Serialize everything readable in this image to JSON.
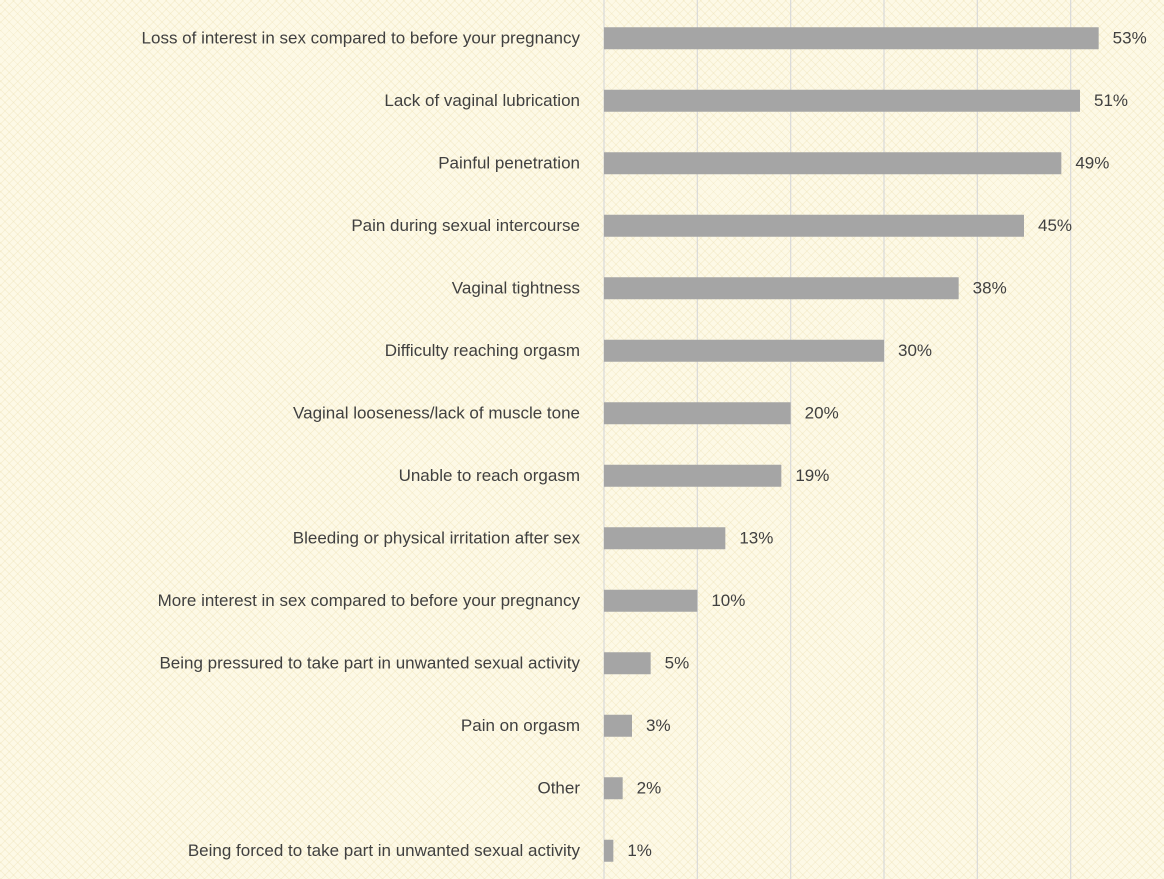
{
  "chart_data": {
    "type": "hbar",
    "categories": [
      "Loss of interest in sex compared to before your pregnancy",
      "Lack of vaginal lubrication",
      "Painful penetration",
      "Pain during sexual intercourse",
      "Vaginal tightness",
      "Difficulty reaching orgasm",
      "Vaginal looseness/lack of muscle tone",
      "Unable to reach orgasm",
      "Bleeding or physical irritation after sex",
      "More interest in sex compared to before your pregnancy",
      "Being pressured to take part in unwanted sexual activity",
      "Pain on orgasm",
      "Other",
      "Being forced to take part in unwanted sexual activity"
    ],
    "values": [
      53,
      51,
      49,
      45,
      38,
      30,
      20,
      19,
      13,
      10,
      5,
      3,
      2,
      1
    ],
    "value_labels": [
      "53%",
      "51%",
      "49%",
      "45%",
      "38%",
      "30%",
      "20%",
      "19%",
      "13%",
      "10%",
      "5%",
      "3%",
      "2%",
      "1%"
    ],
    "color": "#a5a5a5",
    "xlim": [
      0,
      60
    ],
    "xticks": [
      0,
      10,
      20,
      30,
      40,
      50
    ],
    "grid": true
  }
}
